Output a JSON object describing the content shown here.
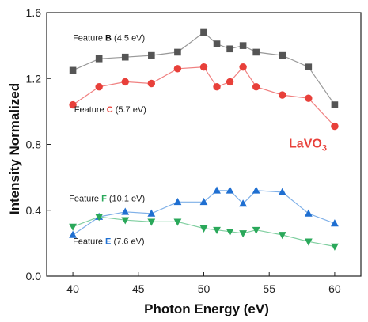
{
  "chart_data": {
    "type": "line",
    "xlabel": "Photon Energy (eV)",
    "ylabel": "Intensity Normalized",
    "xlim": [
      38,
      62
    ],
    "ylim": [
      0,
      1.6
    ],
    "x_ticks": [
      40,
      45,
      50,
      55,
      60
    ],
    "y_ticks": [
      0.0,
      0.4,
      0.8,
      1.2,
      1.6
    ],
    "x_tick_labels": [
      "40",
      "45",
      "50",
      "55",
      "60"
    ],
    "y_tick_labels": [
      "0.0",
      "0.4",
      "0.8",
      "1.2",
      "1.6"
    ],
    "grid": false,
    "series": [
      {
        "key": "B",
        "marker": "square",
        "color": "#555555",
        "line_color": "#999999",
        "x": [
          40,
          42,
          44,
          46,
          48,
          50,
          51,
          52,
          53,
          54,
          56,
          58,
          60
        ],
        "y": [
          1.25,
          1.32,
          1.33,
          1.34,
          1.36,
          1.48,
          1.41,
          1.38,
          1.4,
          1.36,
          1.34,
          1.27,
          1.04
        ]
      },
      {
        "key": "C",
        "marker": "circle",
        "color": "#e8403a",
        "line_color": "#f08080",
        "x": [
          40,
          42,
          44,
          46,
          48,
          50,
          51,
          52,
          53,
          54,
          56,
          58,
          60
        ],
        "y": [
          1.04,
          1.15,
          1.18,
          1.17,
          1.26,
          1.27,
          1.15,
          1.18,
          1.27,
          1.15,
          1.1,
          1.08,
          0.91
        ]
      },
      {
        "key": "F",
        "marker": "triangle-up",
        "color": "#1f6fd1",
        "line_color": "#7fb0e8",
        "x": [
          40,
          42,
          44,
          46,
          48,
          50,
          51,
          52,
          53,
          54,
          56,
          58,
          60
        ],
        "y": [
          0.25,
          0.36,
          0.39,
          0.38,
          0.45,
          0.45,
          0.52,
          0.52,
          0.44,
          0.52,
          0.51,
          0.38,
          0.32
        ]
      },
      {
        "key": "E",
        "marker": "triangle-down",
        "color": "#2aa85a",
        "line_color": "#80cfa0",
        "x": [
          40,
          42,
          44,
          46,
          48,
          50,
          51,
          52,
          53,
          54,
          56,
          58,
          60
        ],
        "y": [
          0.3,
          0.36,
          0.34,
          0.33,
          0.33,
          0.29,
          0.28,
          0.27,
          0.26,
          0.28,
          0.25,
          0.21,
          0.18
        ]
      }
    ],
    "annotations": [
      {
        "key": "B",
        "prefix": "Feature ",
        "letter": "B",
        "suffix": " (4.5 eV)",
        "letter_color": "#111111",
        "x": 40,
        "y": 1.43
      },
      {
        "key": "C",
        "prefix": "Feature ",
        "letter": "C",
        "suffix": " (5.7 eV)",
        "letter_color": "#e8403a",
        "x": 40.1,
        "y": 0.995
      },
      {
        "key": "F",
        "prefix": "Feature ",
        "letter": "F",
        "suffix": " (10.1 eV)",
        "letter_color": "#2aa85a",
        "x": 39.7,
        "y": 0.455
      },
      {
        "key": "E",
        "prefix": "Feature ",
        "letter": "E",
        "suffix": " (7.6 eV)",
        "letter_color": "#1f6fd1",
        "x": 40,
        "y": 0.195
      }
    ],
    "compound_label": {
      "base": "LaVO",
      "sub": "3",
      "color": "#e8403a",
      "x": 56.5,
      "y": 0.78
    }
  }
}
